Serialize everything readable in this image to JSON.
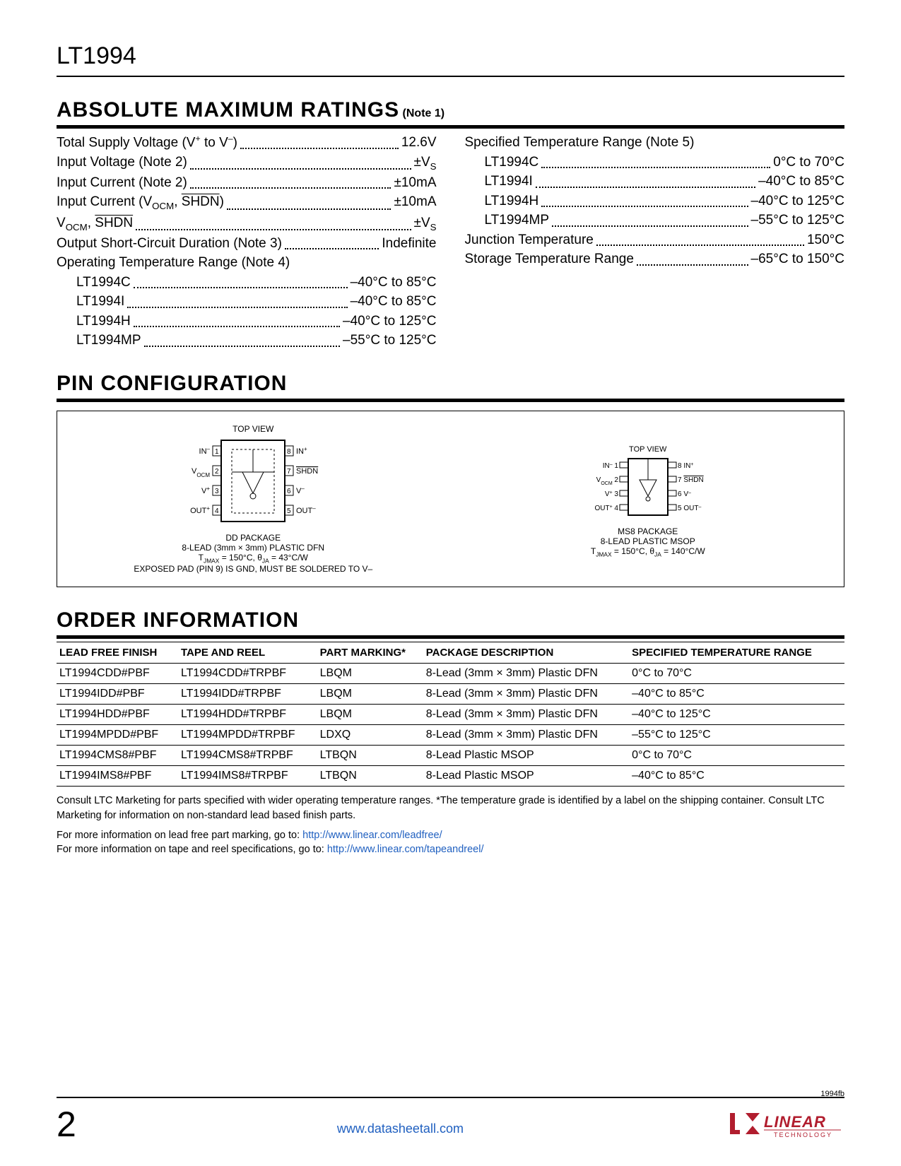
{
  "header": {
    "part_number": "LT1994"
  },
  "amr": {
    "title": "ABSOLUTE MAXIMUM RATINGS",
    "note": "(Note 1)",
    "col1": [
      {
        "label_html": "Total Supply Voltage (V<sup>+</sup> to V<sup>–</sup>)",
        "value": "12.6V"
      },
      {
        "label_html": "Input Voltage (Note 2)",
        "value_html": "±V<sub>S</sub>"
      },
      {
        "label_html": "Input Current (Note 2)",
        "value": "±10mA"
      },
      {
        "label_html": "Input Current (V<sub>OCM</sub>, <span class='overline'>SHDN</span>)",
        "value": "±10mA"
      },
      {
        "label_html": "V<sub>OCM</sub>, <span class='overline'>SHDN</span>",
        "value_html": "±V<sub>S</sub>"
      },
      {
        "label_html": "Output Short-Circuit Duration (Note 3)",
        "value": "Indefinite"
      },
      {
        "label_html": "Operating Temperature Range (Note 4)",
        "value": null
      },
      {
        "label_html": "LT1994C",
        "value": "–40°C to 85°C",
        "indent": true
      },
      {
        "label_html": "LT1994I",
        "value": "–40°C to 85°C",
        "indent": true
      },
      {
        "label_html": "LT1994H",
        "value": "–40°C to 125°C",
        "indent": true
      },
      {
        "label_html": "LT1994MP",
        "value": "–55°C to 125°C",
        "indent": true
      }
    ],
    "col2": [
      {
        "label_html": "Specified Temperature Range (Note 5)",
        "value": null
      },
      {
        "label_html": "LT1994C",
        "value": "0°C to 70°C",
        "indent": true
      },
      {
        "label_html": "LT1994I",
        "value": "–40°C to 85°C",
        "indent": true
      },
      {
        "label_html": "LT1994H",
        "value": "–40°C to 125°C",
        "indent": true
      },
      {
        "label_html": "LT1994MP",
        "value": "–55°C to 125°C",
        "indent": true
      },
      {
        "label_html": "Junction Temperature",
        "value": "150°C"
      },
      {
        "label_html": "Storage Temperature Range",
        "value": "–65°C to 150°C"
      }
    ]
  },
  "pin": {
    "title": "PIN CONFIGURATION",
    "top_view": "TOP VIEW",
    "left": {
      "pins_left": [
        "IN–",
        "V_OCM",
        "V+",
        "OUT+"
      ],
      "pins_right": [
        "IN+",
        "SHDN",
        "V–",
        "OUT–"
      ],
      "package_line1": "DD PACKAGE",
      "package_line2": "8-LEAD (3mm × 3mm) PLASTIC DFN",
      "thermal": "T_JMAX = 150°C, θ_JA = 43°C/W",
      "exposed": "EXPOSED PAD (PIN 9) IS GND, MUST BE SOLDERED TO V–"
    },
    "right": {
      "pins_left": [
        "IN–",
        "V_OCM",
        "V+",
        "OUT+"
      ],
      "pins_right": [
        "IN+",
        "SHDN",
        "V–",
        "OUT–"
      ],
      "package_line1": "MS8 PACKAGE",
      "package_line2": "8-LEAD PLASTIC MSOP",
      "thermal": "T_JMAX = 150°C, θ_JA = 140°C/W"
    }
  },
  "order": {
    "title": "ORDER INFORMATION",
    "columns": [
      "LEAD FREE FINISH",
      "TAPE AND REEL",
      "PART MARKING*",
      "PACKAGE DESCRIPTION",
      "SPECIFIED TEMPERATURE RANGE"
    ],
    "rows": [
      [
        "LT1994CDD#PBF",
        "LT1994CDD#TRPBF",
        "LBQM",
        "8-Lead (3mm × 3mm) Plastic DFN",
        "0°C to 70°C"
      ],
      [
        "LT1994IDD#PBF",
        "LT1994IDD#TRPBF",
        "LBQM",
        "8-Lead (3mm × 3mm) Plastic DFN",
        "–40°C to 85°C"
      ],
      [
        "LT1994HDD#PBF",
        "LT1994HDD#TRPBF",
        "LBQM",
        "8-Lead (3mm × 3mm) Plastic DFN",
        "–40°C to 125°C"
      ],
      [
        "LT1994MPDD#PBF",
        "LT1994MPDD#TRPBF",
        "LDXQ",
        "8-Lead (3mm × 3mm) Plastic DFN",
        "–55°C to 125°C"
      ],
      [
        "LT1994CMS8#PBF",
        "LT1994CMS8#TRPBF",
        "LTBQN",
        "8-Lead Plastic MSOP",
        "0°C to 70°C"
      ],
      [
        "LT1994IMS8#PBF",
        "LT1994IMS8#TRPBF",
        "LTBQN",
        "8-Lead Plastic MSOP",
        "–40°C to 85°C"
      ]
    ],
    "note1": "Consult LTC Marketing for parts specified with wider operating temperature ranges.  *The temperature grade is identified by a label on the shipping container. Consult LTC Marketing for information on non-standard lead based finish parts.",
    "note2_prefix": "For more information on lead free part marking, go to: ",
    "note2_link": "http://www.linear.com/leadfree/",
    "note3_prefix": "For more information on tape and reel specifications, go to: ",
    "note3_link": "http://www.linear.com/tapeandreel/"
  },
  "footer": {
    "page": "2",
    "center_url": "www.datasheetall.com",
    "doc_code": "1994fb",
    "brand_main": "LINEAR",
    "brand_sub": "TECHNOLOGY",
    "brand_color": "#b11d2e"
  }
}
